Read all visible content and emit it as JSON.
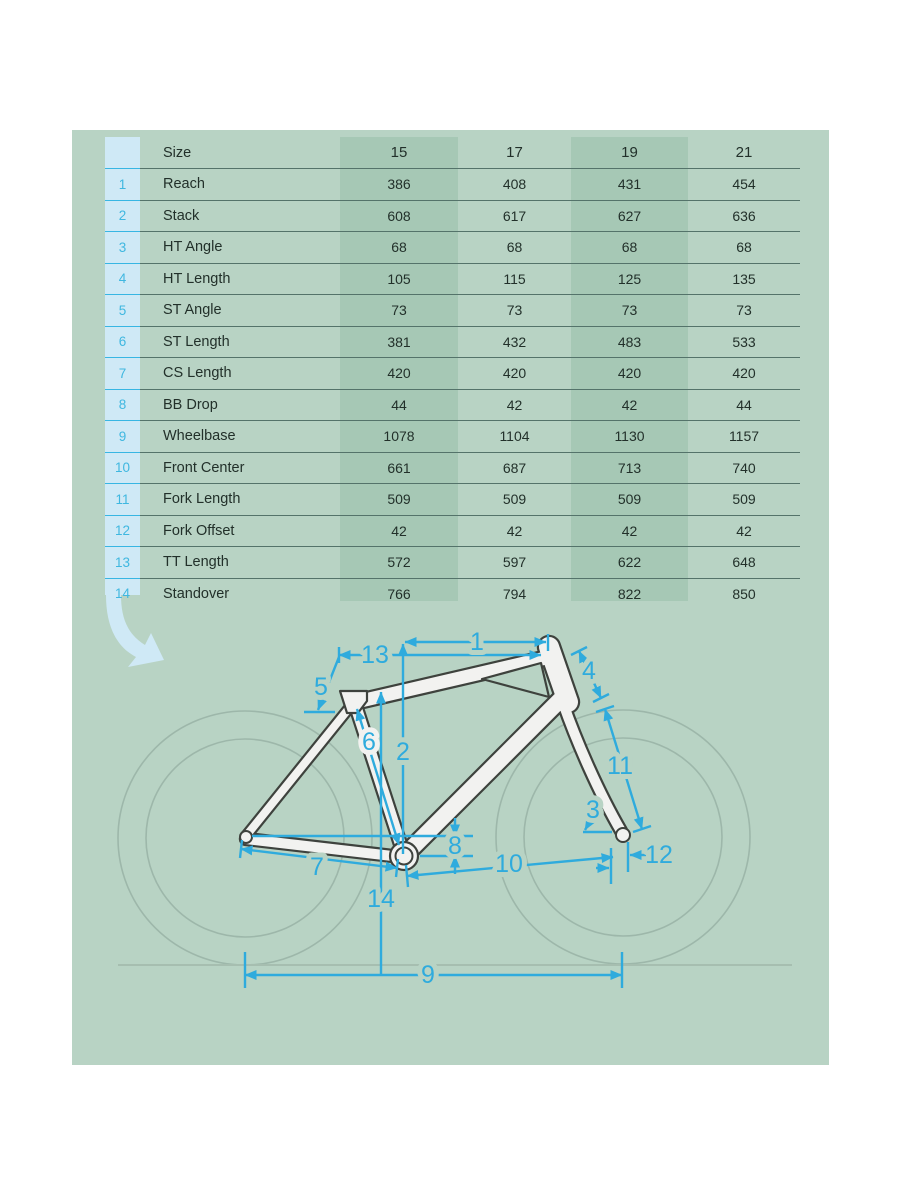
{
  "table": {
    "header": [
      "Size",
      "15",
      "17",
      "19",
      "21"
    ],
    "rows": [
      {
        "num": "1",
        "label": "Reach",
        "values": [
          "386",
          "408",
          "431",
          "454"
        ]
      },
      {
        "num": "2",
        "label": "Stack",
        "values": [
          "608",
          "617",
          "627",
          "636"
        ]
      },
      {
        "num": "3",
        "label": "HT Angle",
        "values": [
          "68",
          "68",
          "68",
          "68"
        ]
      },
      {
        "num": "4",
        "label": "HT Length",
        "values": [
          "105",
          "115",
          "125",
          "135"
        ]
      },
      {
        "num": "5",
        "label": "ST Angle",
        "values": [
          "73",
          "73",
          "73",
          "73"
        ]
      },
      {
        "num": "6",
        "label": "ST Length",
        "values": [
          "381",
          "432",
          "483",
          "533"
        ]
      },
      {
        "num": "7",
        "label": "CS Length",
        "values": [
          "420",
          "420",
          "420",
          "420"
        ]
      },
      {
        "num": "8",
        "label": "BB Drop",
        "values": [
          "44",
          "42",
          "42",
          "44"
        ]
      },
      {
        "num": "9",
        "label": "Wheelbase",
        "values": [
          "1078",
          "1104",
          "1130",
          "1157"
        ]
      },
      {
        "num": "10",
        "label": "Front Center",
        "values": [
          "661",
          "687",
          "713",
          "740"
        ]
      },
      {
        "num": "11",
        "label": "Fork Length",
        "values": [
          "509",
          "509",
          "509",
          "509"
        ]
      },
      {
        "num": "12",
        "label": "Fork Offset",
        "values": [
          "42",
          "42",
          "42",
          "42"
        ]
      },
      {
        "num": "13",
        "label": "TT Length",
        "values": [
          "572",
          "597",
          "622",
          "648"
        ]
      },
      {
        "num": "14",
        "label": "Standover",
        "values": [
          "766",
          "794",
          "822",
          "850"
        ]
      }
    ]
  },
  "diagram": {
    "callouts": [
      "1",
      "2",
      "3",
      "4",
      "5",
      "6",
      "7",
      "8",
      "9",
      "10",
      "11",
      "12",
      "13",
      "14"
    ]
  },
  "colors": {
    "panel": "#b8d3c4",
    "column_stripe": "#a6c8b5",
    "accent_cyan": "#2fabdd",
    "light_blue": "#cfe9f6",
    "text": "#22302a",
    "row_divider": "#54736a",
    "frame_fill": "#f2f2f0",
    "frame_outline": "#3e423d",
    "wheel_outline": "#9db7aa"
  }
}
